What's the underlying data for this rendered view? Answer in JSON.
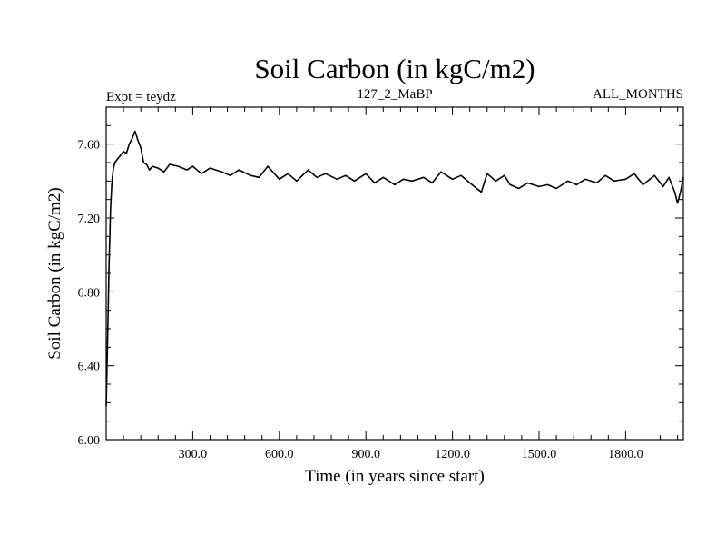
{
  "chart_data": {
    "type": "line",
    "title": "Soil Carbon (in kgC/m2)",
    "subtitle_left": "Expt = teydz",
    "subtitle_center": "127_2_MaBP",
    "subtitle_right": "ALL_MONTHS",
    "xlabel": "Time (in years since start)",
    "ylabel": "Soil Carbon (in kgC/m2)",
    "xlim": [
      0,
      2000
    ],
    "ylim": [
      6.0,
      7.8
    ],
    "x_ticks": [
      300,
      600,
      900,
      1200,
      1500,
      1800
    ],
    "x_tick_labels": [
      "300.0",
      "600.0",
      "900.0",
      "1200.0",
      "1500.0",
      "1800.0"
    ],
    "y_ticks": [
      6.0,
      6.4,
      6.8,
      7.2,
      7.6
    ],
    "y_tick_labels": [
      "6.00",
      "6.40",
      "6.80",
      "7.20",
      "7.60"
    ],
    "series": [
      {
        "color": "#000000",
        "x": [
          0,
          5,
          10,
          15,
          20,
          25,
          30,
          40,
          50,
          60,
          70,
          80,
          90,
          100,
          110,
          120,
          130,
          140,
          150,
          160,
          180,
          200,
          220,
          250,
          280,
          300,
          330,
          360,
          400,
          430,
          460,
          500,
          530,
          560,
          600,
          630,
          660,
          700,
          730,
          760,
          800,
          830,
          860,
          900,
          930,
          960,
          1000,
          1030,
          1060,
          1100,
          1130,
          1160,
          1200,
          1230,
          1260,
          1300,
          1320,
          1350,
          1380,
          1400,
          1430,
          1460,
          1500,
          1530,
          1560,
          1600,
          1630,
          1660,
          1700,
          1730,
          1760,
          1800,
          1830,
          1860,
          1900,
          1930,
          1950,
          1970,
          1980,
          1990,
          2000
        ],
        "y": [
          6.18,
          6.55,
          6.95,
          7.25,
          7.4,
          7.47,
          7.5,
          7.52,
          7.54,
          7.56,
          7.55,
          7.6,
          7.63,
          7.67,
          7.62,
          7.58,
          7.5,
          7.49,
          7.46,
          7.48,
          7.47,
          7.45,
          7.49,
          7.48,
          7.46,
          7.48,
          7.44,
          7.47,
          7.45,
          7.43,
          7.46,
          7.43,
          7.42,
          7.48,
          7.41,
          7.44,
          7.4,
          7.46,
          7.42,
          7.44,
          7.41,
          7.43,
          7.4,
          7.44,
          7.39,
          7.42,
          7.38,
          7.41,
          7.4,
          7.42,
          7.39,
          7.45,
          7.41,
          7.43,
          7.39,
          7.34,
          7.44,
          7.4,
          7.43,
          7.38,
          7.36,
          7.39,
          7.37,
          7.38,
          7.36,
          7.4,
          7.38,
          7.41,
          7.39,
          7.43,
          7.4,
          7.41,
          7.44,
          7.38,
          7.43,
          7.37,
          7.42,
          7.34,
          7.28,
          7.34,
          7.42
        ]
      }
    ]
  }
}
